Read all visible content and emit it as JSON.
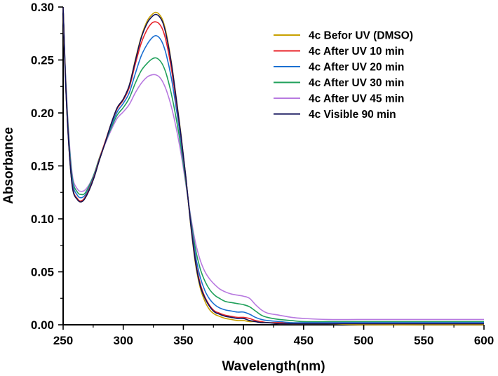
{
  "chart_data": {
    "type": "line",
    "xlabel": "Wavelength(nm)",
    "ylabel": "Absorbance",
    "xlim": [
      250,
      600
    ],
    "ylim": [
      0,
      0.3
    ],
    "xticks": [
      250,
      300,
      350,
      400,
      450,
      500,
      550,
      600
    ],
    "xtick_labels": [
      "250",
      "300",
      "350",
      "400",
      "450",
      "500",
      "550",
      "600"
    ],
    "yticks": [
      0,
      0.05,
      0.1,
      0.15,
      0.2,
      0.25,
      0.3
    ],
    "ytick_labels": [
      "0.00",
      "0.05",
      "0.10",
      "0.15",
      "0.20",
      "0.25",
      "0.30"
    ],
    "grid": false,
    "legend_position": "top-right",
    "series": [
      {
        "name": "4c Befor UV (DMSO)",
        "color": "#c8a000",
        "x": [
          250,
          252,
          255,
          258,
          262,
          265,
          268,
          272,
          276,
          280,
          285,
          290,
          295,
          300,
          305,
          310,
          315,
          320,
          324,
          327,
          330,
          333,
          336,
          340,
          344,
          348,
          352,
          356,
          360,
          364,
          368,
          372,
          376,
          380,
          385,
          390,
          395,
          400,
          405,
          410,
          415,
          420,
          430,
          440,
          450,
          470,
          500,
          550,
          600
        ],
        "y": [
          0.3,
          0.23,
          0.165,
          0.128,
          0.118,
          0.116,
          0.119,
          0.128,
          0.14,
          0.155,
          0.172,
          0.19,
          0.205,
          0.213,
          0.226,
          0.25,
          0.272,
          0.287,
          0.293,
          0.295,
          0.293,
          0.287,
          0.274,
          0.248,
          0.215,
          0.18,
          0.14,
          0.095,
          0.058,
          0.035,
          0.022,
          0.014,
          0.01,
          0.008,
          0.006,
          0.005,
          0.004,
          0.004,
          0.003,
          0.003,
          0.002,
          0.002,
          0.001,
          0.001,
          0.001,
          0.001,
          0.0,
          0.0,
          0.0
        ]
      },
      {
        "name": "4c After UV 10 min",
        "color": "#e8252b",
        "x": [
          250,
          252,
          255,
          258,
          262,
          265,
          268,
          272,
          276,
          280,
          285,
          290,
          295,
          300,
          305,
          310,
          315,
          320,
          324,
          327,
          330,
          333,
          336,
          340,
          344,
          348,
          352,
          356,
          360,
          364,
          368,
          372,
          376,
          380,
          385,
          390,
          395,
          400,
          405,
          410,
          415,
          420,
          430,
          440,
          450,
          470,
          500,
          550,
          600
        ],
        "y": [
          0.3,
          0.231,
          0.166,
          0.129,
          0.119,
          0.117,
          0.12,
          0.129,
          0.141,
          0.156,
          0.173,
          0.19,
          0.204,
          0.212,
          0.224,
          0.246,
          0.266,
          0.279,
          0.285,
          0.286,
          0.284,
          0.278,
          0.266,
          0.242,
          0.211,
          0.178,
          0.139,
          0.097,
          0.061,
          0.039,
          0.026,
          0.018,
          0.013,
          0.011,
          0.009,
          0.008,
          0.007,
          0.007,
          0.006,
          0.004,
          0.003,
          0.002,
          0.002,
          0.001,
          0.001,
          0.001,
          0.001,
          0.001,
          0.001
        ]
      },
      {
        "name": "4c After UV 20 min",
        "color": "#1a6fd1",
        "x": [
          250,
          252,
          255,
          258,
          262,
          265,
          268,
          272,
          276,
          280,
          285,
          290,
          295,
          300,
          305,
          310,
          315,
          320,
          324,
          327,
          330,
          333,
          336,
          340,
          344,
          348,
          352,
          356,
          360,
          364,
          368,
          372,
          376,
          380,
          385,
          390,
          395,
          400,
          405,
          410,
          415,
          420,
          430,
          440,
          450,
          470,
          500,
          550,
          600
        ],
        "y": [
          0.3,
          0.233,
          0.169,
          0.133,
          0.122,
          0.12,
          0.122,
          0.13,
          0.142,
          0.156,
          0.172,
          0.188,
          0.201,
          0.209,
          0.219,
          0.237,
          0.254,
          0.265,
          0.271,
          0.273,
          0.271,
          0.265,
          0.254,
          0.233,
          0.205,
          0.174,
          0.138,
          0.099,
          0.066,
          0.045,
          0.032,
          0.024,
          0.019,
          0.016,
          0.014,
          0.013,
          0.012,
          0.012,
          0.01,
          0.007,
          0.005,
          0.004,
          0.003,
          0.002,
          0.002,
          0.002,
          0.002,
          0.002,
          0.002
        ]
      },
      {
        "name": "4c After UV 30 min",
        "color": "#1fa05a",
        "x": [
          250,
          252,
          255,
          258,
          262,
          265,
          268,
          272,
          276,
          280,
          285,
          290,
          295,
          300,
          305,
          310,
          315,
          320,
          324,
          327,
          330,
          333,
          336,
          340,
          344,
          348,
          352,
          356,
          360,
          364,
          368,
          372,
          376,
          380,
          385,
          390,
          395,
          400,
          405,
          410,
          415,
          420,
          430,
          440,
          450,
          470,
          500,
          550,
          600
        ],
        "y": [
          0.3,
          0.235,
          0.172,
          0.136,
          0.125,
          0.123,
          0.124,
          0.132,
          0.143,
          0.157,
          0.172,
          0.186,
          0.198,
          0.205,
          0.214,
          0.228,
          0.24,
          0.247,
          0.251,
          0.252,
          0.25,
          0.245,
          0.236,
          0.218,
          0.195,
          0.168,
          0.135,
          0.101,
          0.072,
          0.053,
          0.041,
          0.033,
          0.028,
          0.025,
          0.022,
          0.021,
          0.02,
          0.019,
          0.017,
          0.013,
          0.009,
          0.007,
          0.005,
          0.004,
          0.003,
          0.003,
          0.003,
          0.003,
          0.003
        ]
      },
      {
        "name": "4c After UV 45 min",
        "color": "#b87ae0",
        "x": [
          250,
          252,
          255,
          258,
          262,
          265,
          268,
          272,
          276,
          280,
          285,
          290,
          295,
          300,
          305,
          310,
          315,
          320,
          324,
          327,
          330,
          333,
          336,
          340,
          344,
          348,
          352,
          356,
          360,
          364,
          368,
          372,
          376,
          380,
          385,
          390,
          395,
          400,
          405,
          410,
          415,
          420,
          430,
          440,
          450,
          470,
          500,
          550,
          600
        ],
        "y": [
          0.3,
          0.237,
          0.175,
          0.139,
          0.128,
          0.126,
          0.127,
          0.133,
          0.143,
          0.156,
          0.171,
          0.184,
          0.195,
          0.201,
          0.208,
          0.219,
          0.228,
          0.234,
          0.236,
          0.236,
          0.234,
          0.229,
          0.221,
          0.206,
          0.186,
          0.162,
          0.133,
          0.103,
          0.078,
          0.061,
          0.05,
          0.043,
          0.038,
          0.034,
          0.031,
          0.029,
          0.028,
          0.027,
          0.025,
          0.019,
          0.014,
          0.011,
          0.009,
          0.007,
          0.006,
          0.005,
          0.005,
          0.005,
          0.005
        ]
      },
      {
        "name": "4c Visible 90 min",
        "color": "#10105a",
        "x": [
          250,
          252,
          255,
          258,
          262,
          265,
          268,
          272,
          276,
          280,
          285,
          290,
          295,
          300,
          305,
          310,
          315,
          320,
          324,
          327,
          330,
          333,
          336,
          340,
          344,
          348,
          352,
          356,
          360,
          364,
          368,
          372,
          376,
          380,
          385,
          390,
          395,
          400,
          405,
          410,
          415,
          420,
          430,
          440,
          450,
          470,
          500,
          550,
          600
        ],
        "y": [
          0.3,
          0.23,
          0.165,
          0.128,
          0.118,
          0.116,
          0.119,
          0.128,
          0.14,
          0.155,
          0.172,
          0.19,
          0.205,
          0.213,
          0.226,
          0.249,
          0.271,
          0.285,
          0.291,
          0.293,
          0.291,
          0.285,
          0.272,
          0.247,
          0.214,
          0.179,
          0.14,
          0.096,
          0.06,
          0.037,
          0.025,
          0.017,
          0.012,
          0.01,
          0.008,
          0.007,
          0.006,
          0.006,
          0.004,
          0.003,
          0.002,
          0.002,
          0.001,
          0.001,
          0.001,
          0.001,
          0.001,
          0.001,
          0.001
        ]
      }
    ]
  }
}
